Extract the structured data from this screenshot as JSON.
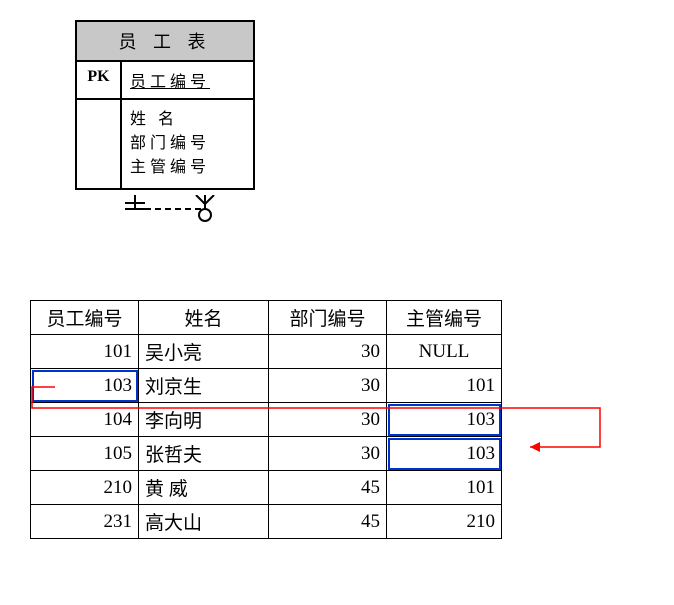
{
  "entity": {
    "title": "员 工 表",
    "pk_label": "PK",
    "pk_field": "员工编号",
    "fields": [
      "姓 名",
      "部门编号",
      "主管编号"
    ],
    "title_bg": "#c8c8c8",
    "border_color": "#000000"
  },
  "connector": {
    "stroke": "#000000",
    "stroke_width": 2,
    "dash": "6,4"
  },
  "table": {
    "columns": [
      "员工编号",
      "姓名",
      "部门编号",
      "主管编号"
    ],
    "rows": [
      {
        "id": "101",
        "name": "吴小亮",
        "dept": "30",
        "mgr": "NULL",
        "mgr_null": true
      },
      {
        "id": "103",
        "name": "刘京生",
        "dept": "30",
        "mgr": "101",
        "id_highlight": true
      },
      {
        "id": "104",
        "name": "李向明",
        "dept": "30",
        "mgr": "103",
        "mgr_highlight": true
      },
      {
        "id": "105",
        "name": "张哲夫",
        "dept": "30",
        "mgr": "103",
        "mgr_highlight": true
      },
      {
        "id": "210",
        "name": "黄   威",
        "dept": "45",
        "mgr": "101",
        "name_spaced": true
      },
      {
        "id": "231",
        "name": "高大山",
        "dept": "45",
        "mgr": "210"
      }
    ],
    "border_color": "#000000",
    "highlight_color": "#0033cc",
    "col_widths": {
      "id": 108,
      "name": 130,
      "dept": 118,
      "mgr": 115
    }
  },
  "red_arrow": {
    "stroke": "#ff0000",
    "stroke_width": 1.5
  }
}
